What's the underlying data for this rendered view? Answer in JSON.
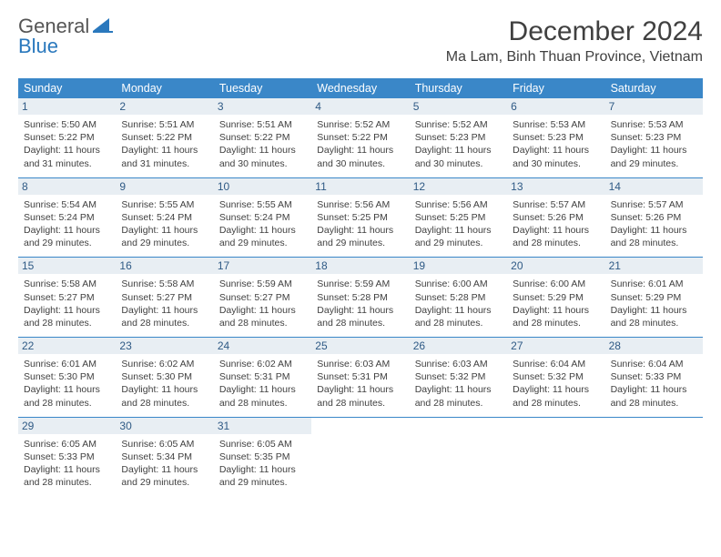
{
  "logo": {
    "word1": "General",
    "word2": "Blue"
  },
  "title": "December 2024",
  "location": "Ma Lam, Binh Thuan Province, Vietnam",
  "accent_color": "#3a87c8",
  "daynum_bg": "#e8eef3",
  "weekdays": [
    "Sunday",
    "Monday",
    "Tuesday",
    "Wednesday",
    "Thursday",
    "Friday",
    "Saturday"
  ],
  "weeks": [
    [
      {
        "n": "1",
        "sr": "5:50 AM",
        "ss": "5:22 PM",
        "dl": "11 hours and 31 minutes."
      },
      {
        "n": "2",
        "sr": "5:51 AM",
        "ss": "5:22 PM",
        "dl": "11 hours and 31 minutes."
      },
      {
        "n": "3",
        "sr": "5:51 AM",
        "ss": "5:22 PM",
        "dl": "11 hours and 30 minutes."
      },
      {
        "n": "4",
        "sr": "5:52 AM",
        "ss": "5:22 PM",
        "dl": "11 hours and 30 minutes."
      },
      {
        "n": "5",
        "sr": "5:52 AM",
        "ss": "5:23 PM",
        "dl": "11 hours and 30 minutes."
      },
      {
        "n": "6",
        "sr": "5:53 AM",
        "ss": "5:23 PM",
        "dl": "11 hours and 30 minutes."
      },
      {
        "n": "7",
        "sr": "5:53 AM",
        "ss": "5:23 PM",
        "dl": "11 hours and 29 minutes."
      }
    ],
    [
      {
        "n": "8",
        "sr": "5:54 AM",
        "ss": "5:24 PM",
        "dl": "11 hours and 29 minutes."
      },
      {
        "n": "9",
        "sr": "5:55 AM",
        "ss": "5:24 PM",
        "dl": "11 hours and 29 minutes."
      },
      {
        "n": "10",
        "sr": "5:55 AM",
        "ss": "5:24 PM",
        "dl": "11 hours and 29 minutes."
      },
      {
        "n": "11",
        "sr": "5:56 AM",
        "ss": "5:25 PM",
        "dl": "11 hours and 29 minutes."
      },
      {
        "n": "12",
        "sr": "5:56 AM",
        "ss": "5:25 PM",
        "dl": "11 hours and 29 minutes."
      },
      {
        "n": "13",
        "sr": "5:57 AM",
        "ss": "5:26 PM",
        "dl": "11 hours and 28 minutes."
      },
      {
        "n": "14",
        "sr": "5:57 AM",
        "ss": "5:26 PM",
        "dl": "11 hours and 28 minutes."
      }
    ],
    [
      {
        "n": "15",
        "sr": "5:58 AM",
        "ss": "5:27 PM",
        "dl": "11 hours and 28 minutes."
      },
      {
        "n": "16",
        "sr": "5:58 AM",
        "ss": "5:27 PM",
        "dl": "11 hours and 28 minutes."
      },
      {
        "n": "17",
        "sr": "5:59 AM",
        "ss": "5:27 PM",
        "dl": "11 hours and 28 minutes."
      },
      {
        "n": "18",
        "sr": "5:59 AM",
        "ss": "5:28 PM",
        "dl": "11 hours and 28 minutes."
      },
      {
        "n": "19",
        "sr": "6:00 AM",
        "ss": "5:28 PM",
        "dl": "11 hours and 28 minutes."
      },
      {
        "n": "20",
        "sr": "6:00 AM",
        "ss": "5:29 PM",
        "dl": "11 hours and 28 minutes."
      },
      {
        "n": "21",
        "sr": "6:01 AM",
        "ss": "5:29 PM",
        "dl": "11 hours and 28 minutes."
      }
    ],
    [
      {
        "n": "22",
        "sr": "6:01 AM",
        "ss": "5:30 PM",
        "dl": "11 hours and 28 minutes."
      },
      {
        "n": "23",
        "sr": "6:02 AM",
        "ss": "5:30 PM",
        "dl": "11 hours and 28 minutes."
      },
      {
        "n": "24",
        "sr": "6:02 AM",
        "ss": "5:31 PM",
        "dl": "11 hours and 28 minutes."
      },
      {
        "n": "25",
        "sr": "6:03 AM",
        "ss": "5:31 PM",
        "dl": "11 hours and 28 minutes."
      },
      {
        "n": "26",
        "sr": "6:03 AM",
        "ss": "5:32 PM",
        "dl": "11 hours and 28 minutes."
      },
      {
        "n": "27",
        "sr": "6:04 AM",
        "ss": "5:32 PM",
        "dl": "11 hours and 28 minutes."
      },
      {
        "n": "28",
        "sr": "6:04 AM",
        "ss": "5:33 PM",
        "dl": "11 hours and 28 minutes."
      }
    ],
    [
      {
        "n": "29",
        "sr": "6:05 AM",
        "ss": "5:33 PM",
        "dl": "11 hours and 28 minutes."
      },
      {
        "n": "30",
        "sr": "6:05 AM",
        "ss": "5:34 PM",
        "dl": "11 hours and 29 minutes."
      },
      {
        "n": "31",
        "sr": "6:05 AM",
        "ss": "5:35 PM",
        "dl": "11 hours and 29 minutes."
      },
      null,
      null,
      null,
      null
    ]
  ],
  "labels": {
    "sunrise": "Sunrise:",
    "sunset": "Sunset:",
    "daylight": "Daylight:"
  }
}
